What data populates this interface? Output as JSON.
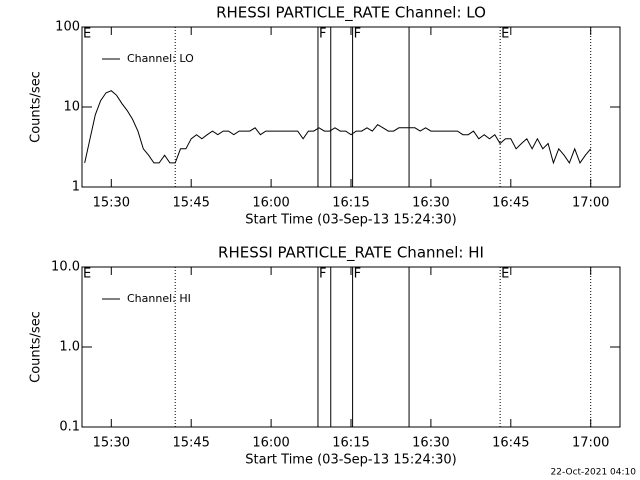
{
  "chart_data": [
    {
      "type": "line",
      "title": "RHESSI PARTICLE_RATE Channel: LO",
      "xlabel": "Start Time (03-Sep-13 15:24:30)",
      "ylabel": "Counts/sec",
      "log_y": true,
      "ylim": [
        1,
        100
      ],
      "yticks": [
        1,
        10,
        100
      ],
      "xlim": [
        924.5,
        1025.5
      ],
      "xticks": [
        {
          "value": 930,
          "label": "15:30"
        },
        {
          "value": 945,
          "label": "15:45"
        },
        {
          "value": 960,
          "label": "16:00"
        },
        {
          "value": 975,
          "label": "16:15"
        },
        {
          "value": 990,
          "label": "16:30"
        },
        {
          "value": 1005,
          "label": "16:45"
        },
        {
          "value": 1020,
          "label": "17:00"
        }
      ],
      "legend": "upper left",
      "vlines": [
        {
          "x": 942,
          "style": "dotted"
        },
        {
          "x": 968.8,
          "style": "solid"
        },
        {
          "x": 971.2,
          "style": "solid"
        },
        {
          "x": 975.3,
          "style": "solid"
        },
        {
          "x": 985.9,
          "style": "solid"
        },
        {
          "x": 1003,
          "style": "dotted"
        },
        {
          "x": 1020,
          "style": "dotted"
        }
      ],
      "flags": [
        {
          "x": 924.5,
          "label": "E"
        },
        {
          "x": 968.8,
          "label": "F"
        },
        {
          "x": 975.3,
          "label": "F"
        },
        {
          "x": 1003,
          "label": "E"
        }
      ],
      "series": [
        {
          "name": "Channel: LO",
          "color": "#000000",
          "x": [
            925,
            926,
            927,
            928,
            929,
            930,
            931,
            932,
            933,
            934,
            935,
            936,
            937,
            938,
            939,
            940,
            941,
            942,
            943,
            944,
            945,
            946,
            947,
            948,
            949,
            950,
            951,
            952,
            953,
            954,
            955,
            956,
            957,
            958,
            959,
            960,
            961,
            962,
            963,
            964,
            965,
            966,
            967,
            968,
            969,
            970,
            971,
            972,
            973,
            974,
            975,
            976,
            977,
            978,
            979,
            980,
            981,
            982,
            983,
            984,
            985,
            986,
            987,
            988,
            989,
            990,
            991,
            992,
            993,
            994,
            995,
            996,
            997,
            998,
            999,
            1000,
            1001,
            1002,
            1003,
            1004,
            1005,
            1006,
            1007,
            1008,
            1009,
            1010,
            1011,
            1012,
            1013,
            1014,
            1015,
            1016,
            1017,
            1018,
            1019,
            1020
          ],
          "values": [
            2,
            4,
            8,
            12,
            15,
            16,
            14,
            11,
            9,
            7,
            5,
            3,
            2.5,
            2,
            2,
            2.5,
            2,
            2,
            3,
            3,
            4,
            4.5,
            4,
            4.5,
            5,
            4.5,
            5,
            5,
            4.5,
            5,
            5,
            5,
            5.5,
            4.5,
            5,
            5,
            5,
            5,
            5,
            5,
            5,
            4,
            5,
            5,
            5.5,
            5,
            5,
            5.5,
            5,
            5,
            4.5,
            5,
            5,
            5.5,
            5,
            6,
            5.5,
            5,
            5,
            5.5,
            5.5,
            5.5,
            5.5,
            5,
            5.5,
            5,
            5,
            5,
            5,
            5,
            5,
            4.5,
            4.5,
            5,
            4,
            4.5,
            4,
            4.5,
            3.5,
            4,
            4,
            3,
            3.5,
            4,
            3,
            4,
            3,
            3.5,
            2,
            3,
            2.5,
            2,
            3,
            2,
            2.5,
            3
          ]
        }
      ]
    },
    {
      "type": "line",
      "title": "RHESSI PARTICLE_RATE Channel: HI",
      "xlabel": "Start Time (03-Sep-13 15:24:30)",
      "ylabel": "Counts/sec",
      "log_y": true,
      "ylim": [
        0.1,
        10
      ],
      "yticks": [
        0.1,
        {
          "value": 1,
          "label": "1.0"
        },
        {
          "value": 10,
          "label": "10.0"
        }
      ],
      "xlim": [
        924.5,
        1025.5
      ],
      "xticks": [
        {
          "value": 930,
          "label": "15:30"
        },
        {
          "value": 945,
          "label": "15:45"
        },
        {
          "value": 960,
          "label": "16:00"
        },
        {
          "value": 975,
          "label": "16:15"
        },
        {
          "value": 990,
          "label": "16:30"
        },
        {
          "value": 1005,
          "label": "16:45"
        },
        {
          "value": 1020,
          "label": "17:00"
        }
      ],
      "legend": "upper left",
      "vlines": [
        {
          "x": 942,
          "style": "dotted"
        },
        {
          "x": 968.8,
          "style": "solid"
        },
        {
          "x": 971.2,
          "style": "solid"
        },
        {
          "x": 975.3,
          "style": "solid"
        },
        {
          "x": 985.9,
          "style": "solid"
        },
        {
          "x": 1003,
          "style": "dotted"
        },
        {
          "x": 1020,
          "style": "dotted"
        }
      ],
      "flags": [
        {
          "x": 924.5,
          "label": "E"
        },
        {
          "x": 968.8,
          "label": "F"
        },
        {
          "x": 975.3,
          "label": "F"
        },
        {
          "x": 1003,
          "label": "E"
        }
      ],
      "series": [
        {
          "name": "Channel: HI",
          "color": "#000000",
          "x": [],
          "values": []
        }
      ]
    }
  ],
  "footer": "22-Oct-2021 04:10"
}
